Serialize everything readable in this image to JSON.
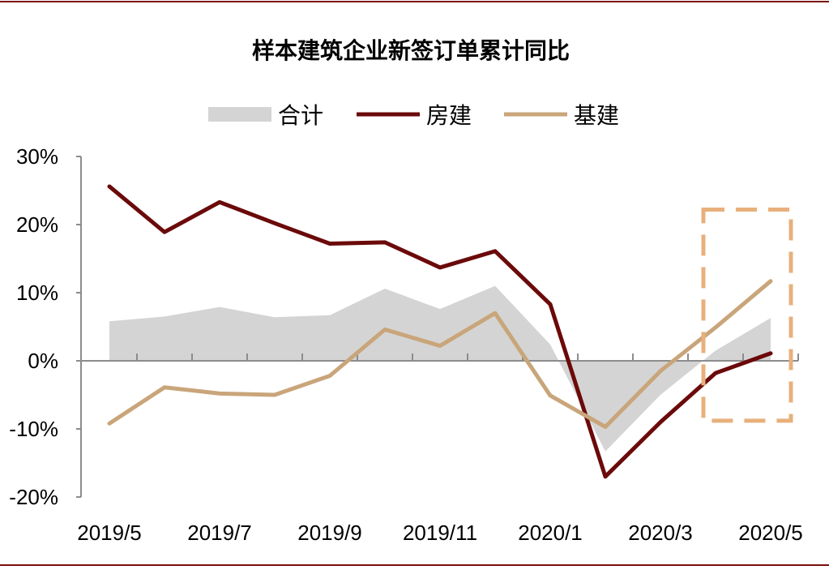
{
  "chart_data": {
    "type": "line",
    "title": "样本建筑企业新签订单累计同比",
    "categories": [
      "2019/5",
      "2019/6",
      "2019/7",
      "2019/8",
      "2019/9",
      "2019/10",
      "2019/11",
      "2019/12",
      "2020/1",
      "2020/2",
      "2020/3",
      "2020/4",
      "2020/5"
    ],
    "x_tick_labels": [
      "2019/5",
      "2019/7",
      "2019/9",
      "2019/11",
      "2020/1",
      "2020/3",
      "2020/5"
    ],
    "y_tick_labels": [
      "30%",
      "20%",
      "10%",
      "0%",
      "-10%",
      "-20%"
    ],
    "y_ticks": [
      30,
      20,
      10,
      0,
      -10,
      -20
    ],
    "ylim": [
      -20,
      30
    ],
    "xlabel": "",
    "ylabel": "",
    "series": [
      {
        "name": "合计",
        "style": "area",
        "color": "#d4d4d4",
        "values": [
          5.8,
          6.5,
          7.9,
          6.4,
          6.7,
          10.6,
          7.6,
          11.0,
          2.4,
          -13.3,
          -5.0,
          1.5,
          6.3
        ]
      },
      {
        "name": "房建",
        "style": "line",
        "color": "#6b0a0a",
        "values": [
          25.6,
          18.9,
          23.3,
          20.2,
          17.2,
          17.4,
          13.7,
          16.1,
          8.3,
          -17.0,
          -9.0,
          -1.8,
          1.1
        ]
      },
      {
        "name": "基建",
        "style": "line",
        "color": "#c9a57a",
        "values": [
          -9.2,
          -3.9,
          -4.8,
          -5.0,
          -2.2,
          4.6,
          2.2,
          7.0,
          -5.1,
          -9.7,
          -1.5,
          4.9,
          11.7
        ]
      }
    ],
    "highlight": {
      "from_category": "2020/4",
      "to_category": "2020/5",
      "y_range": [
        -8.8,
        22.2
      ],
      "color": "#e8b07c",
      "style": "dashed"
    },
    "frame_color": "#7b0d0d"
  }
}
